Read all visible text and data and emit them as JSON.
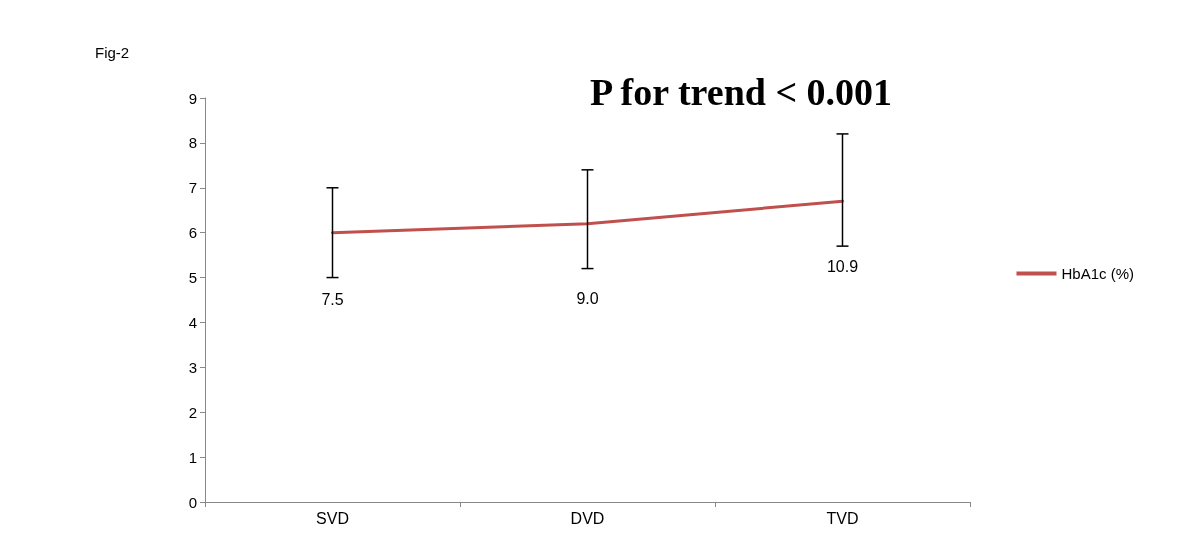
{
  "chart_data": {
    "type": "line",
    "title": "Fig-2",
    "annotations": [
      "P for trend < 0.001",
      "7.5",
      "9.0",
      "10.9"
    ],
    "categories": [
      "SVD",
      "DVD",
      "TVD"
    ],
    "series": [
      {
        "name": "HbA1c (%)",
        "color": "#c0504d",
        "values": [
          6.0,
          6.2,
          6.7
        ],
        "errors": [
          [
            5.0,
            7.0
          ],
          [
            5.2,
            7.4
          ],
          [
            5.7,
            8.2
          ]
        ]
      }
    ],
    "ylim": [
      0,
      9
    ],
    "yticks": [
      0,
      1,
      2,
      3,
      4,
      5,
      6,
      7,
      8,
      9
    ],
    "grid": false,
    "legend": "right",
    "marker": "none",
    "line_style": "solid"
  }
}
